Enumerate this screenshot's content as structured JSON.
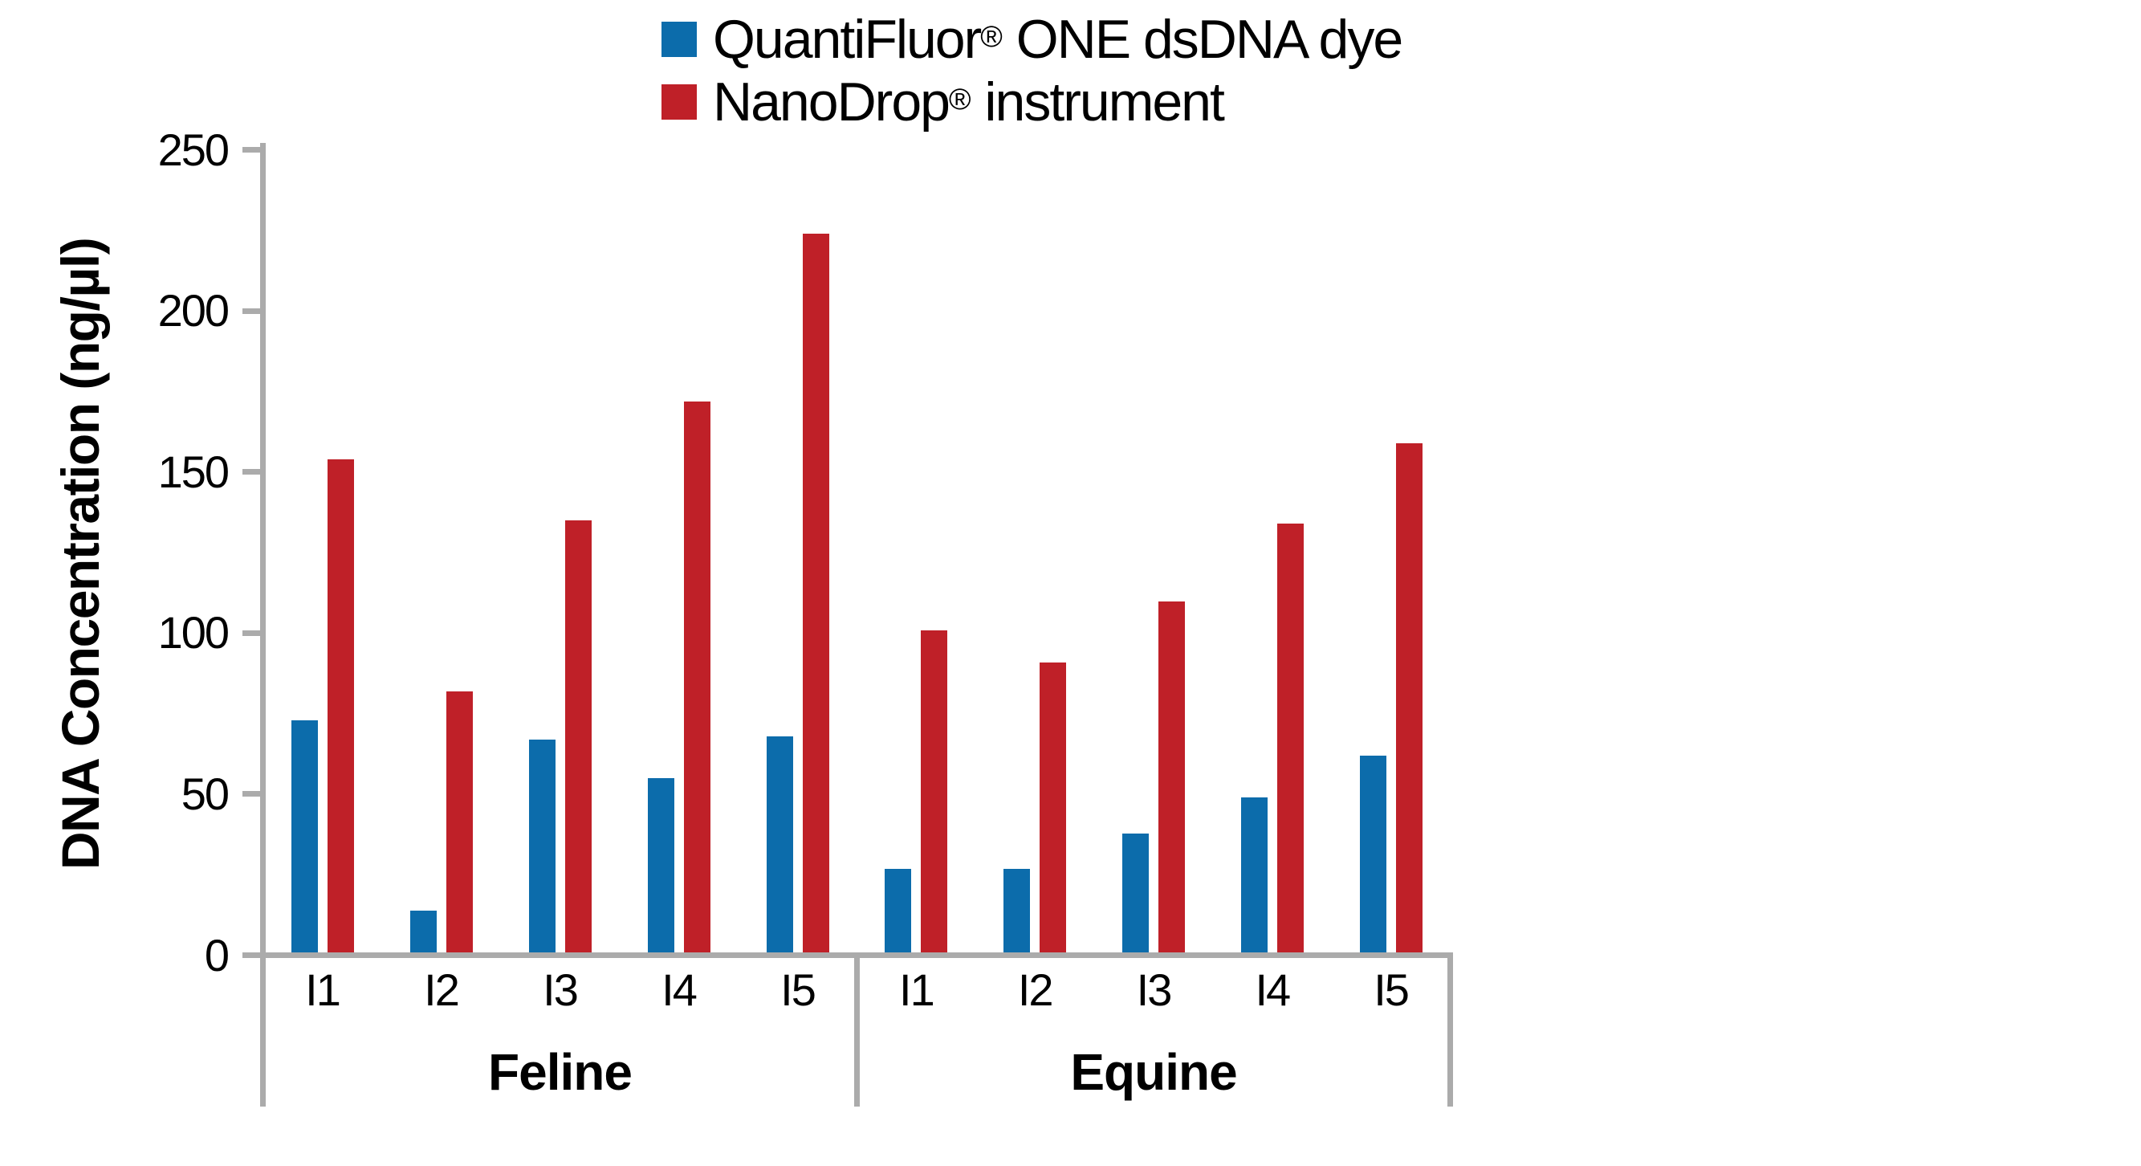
{
  "chart_data": {
    "type": "bar",
    "title": "",
    "ylabel": "DNA Concentration (ng/µl)",
    "xlabel": "",
    "ylim": [
      0,
      250
    ],
    "yticks": [
      0,
      50,
      100,
      150,
      200,
      250
    ],
    "grid": false,
    "legend_position": "top-center",
    "background_color": "#FFFFFF",
    "axis_color": "#ABABAB",
    "text_color": "#000000",
    "categories": [
      "I1",
      "I2",
      "I3",
      "I4",
      "I5"
    ],
    "groups": [
      "Feline",
      "Equine"
    ],
    "series": [
      {
        "name": "QuantiFluor® ONE dsDNA dye",
        "color": "#0C6CAB",
        "values": {
          "Feline": [
            72,
            13,
            66,
            54,
            67
          ],
          "Equine": [
            26,
            26,
            37,
            48,
            61
          ]
        }
      },
      {
        "name": "NanoDrop® instrument",
        "color": "#BF2028",
        "values": {
          "Feline": [
            153,
            81,
            134,
            171,
            223
          ],
          "Equine": [
            100,
            90,
            109,
            133,
            158
          ]
        }
      }
    ]
  }
}
